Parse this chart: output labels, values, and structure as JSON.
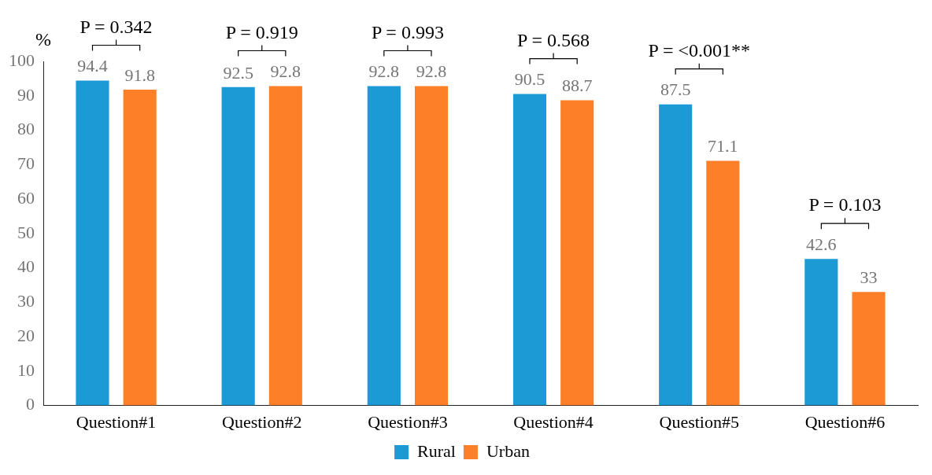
{
  "chart_data": {
    "type": "bar",
    "ylabel": "%",
    "categories": [
      "Question#1",
      "Question#2",
      "Question#3",
      "Question#4",
      "Question#5",
      "Question#6"
    ],
    "series": [
      {
        "name": "Rural",
        "color": "#1b9ad6",
        "values": [
          94.4,
          92.5,
          92.8,
          90.5,
          87.5,
          42.6
        ]
      },
      {
        "name": "Urban",
        "color": "#fd7f28",
        "values": [
          91.8,
          92.8,
          92.8,
          88.7,
          71.1,
          33
        ]
      }
    ],
    "ylim": [
      0,
      100
    ],
    "yticks": [
      0,
      10,
      20,
      30,
      40,
      50,
      60,
      70,
      80,
      90,
      100
    ],
    "data_labels": true,
    "legend": "bottom",
    "grid": false,
    "annotations": [
      "P = 0.342",
      "P = 0.919",
      "P = 0.993",
      "P = 0.568",
      "P = <0.001**",
      "P = 0.103"
    ]
  }
}
